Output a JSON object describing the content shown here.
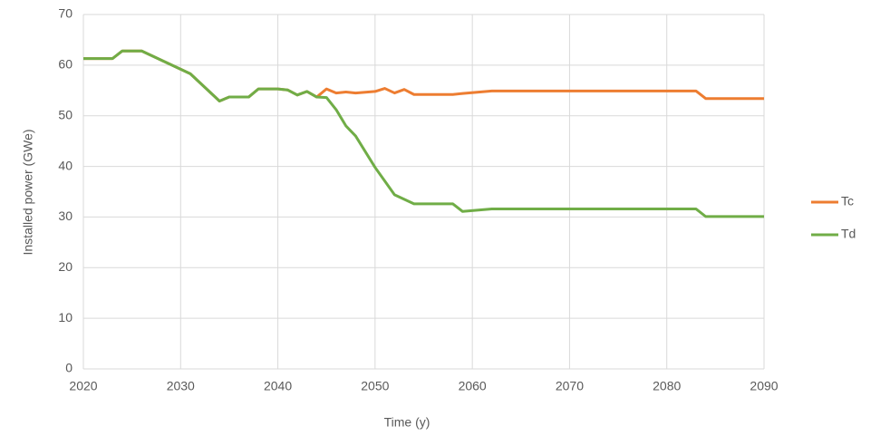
{
  "chart_data": {
    "type": "line",
    "x_label": "Time (y)",
    "y_label": "Installed power (GWe)",
    "x": [
      2020,
      2023,
      2024,
      2026,
      2031,
      2034,
      2035,
      2037,
      2038,
      2040,
      2041,
      2042,
      2043,
      2044,
      2045,
      2046,
      2047,
      2048,
      2050,
      2051,
      2052,
      2053,
      2054,
      2058,
      2059,
      2062,
      2083,
      2084,
      2090
    ],
    "series": [
      {
        "name": "Tc",
        "color": "#ed7d31",
        "values": [
          61.3,
          61.3,
          62.8,
          62.8,
          58.3,
          52.9,
          53.7,
          53.7,
          55.3,
          55.3,
          55.1,
          54.1,
          54.8,
          53.7,
          55.3,
          54.5,
          54.7,
          54.5,
          54.8,
          55.4,
          54.5,
          55.2,
          54.2,
          54.2,
          54.4,
          54.9,
          54.9,
          53.4,
          53.4
        ]
      },
      {
        "name": "Td",
        "color": "#70ad47",
        "values": [
          61.3,
          61.3,
          62.8,
          62.8,
          58.3,
          52.9,
          53.7,
          53.7,
          55.3,
          55.3,
          55.1,
          54.1,
          54.8,
          53.7,
          53.6,
          51.2,
          48,
          46,
          39.8,
          37.1,
          34.4,
          33.5,
          32.6,
          32.6,
          31.1,
          31.6,
          31.6,
          30.1,
          30.1
        ]
      }
    ],
    "xlim": [
      2020,
      2090
    ],
    "xticks": [
      2020,
      2030,
      2040,
      2050,
      2060,
      2070,
      2080,
      2090
    ],
    "ylim": [
      0,
      70
    ],
    "yticks": [
      0,
      10,
      20,
      30,
      40,
      50,
      60,
      70
    ],
    "grid": true,
    "legend": "right"
  }
}
